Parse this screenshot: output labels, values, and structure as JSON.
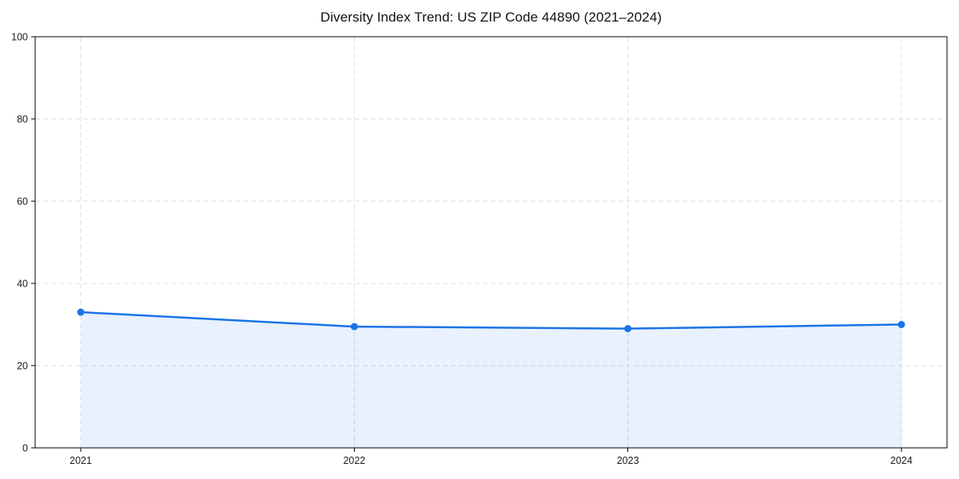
{
  "chart_data": {
    "type": "area",
    "title": "Diversity Index Trend: US ZIP Code 44890 (2021–2024)",
    "x": [
      2021,
      2022,
      2023,
      2024
    ],
    "x_tick_labels": [
      "2021",
      "2022",
      "2023",
      "2024"
    ],
    "series": [
      {
        "name": "Diversity Index",
        "values": [
          33,
          29.5,
          29,
          30
        ]
      }
    ],
    "xlabel": "",
    "ylabel": "",
    "ylim": [
      0,
      100
    ],
    "y_ticks": [
      0,
      20,
      40,
      60,
      80,
      100
    ],
    "grid": true,
    "grid_style": "dashed",
    "legend": "none",
    "colors": {
      "line": "#1a73e8",
      "marker": "#1a73e8",
      "fill": "rgba(26,115,232,0.10)",
      "grid": "#dedede",
      "spine": "#000000",
      "tick_label": "#1a1a1a",
      "background": "#ffffff"
    }
  }
}
